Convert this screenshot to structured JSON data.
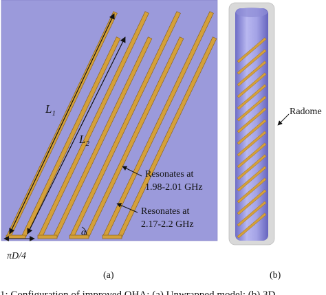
{
  "panel_a": {
    "label_L1": "L",
    "label_L1_sub": "1",
    "label_L2": "L",
    "label_L2_sub": "2",
    "label_alpha": "α",
    "label_width": "πD/4",
    "annotation_1_line1": "Resonates at",
    "annotation_1_line2": "1.98-2.01 GHz",
    "annotation_2_line1": "Resonates at",
    "annotation_2_line2": "2.17-2.2 GHz",
    "caption": "(a)"
  },
  "panel_b": {
    "label_radome": "Radome",
    "caption": "(b)"
  },
  "footer_caption": "1: Configuration of improved QHA: (a) Unwrapped model; (b) 3D",
  "colors": {
    "substrate": "#9B9ADB",
    "strip": "#D4A03A",
    "strip_edge": "#8C6420",
    "radome": "#D9D9D9",
    "cylinder_light": "#B4B3EE",
    "cylinder_dark": "#6E6DC6"
  }
}
